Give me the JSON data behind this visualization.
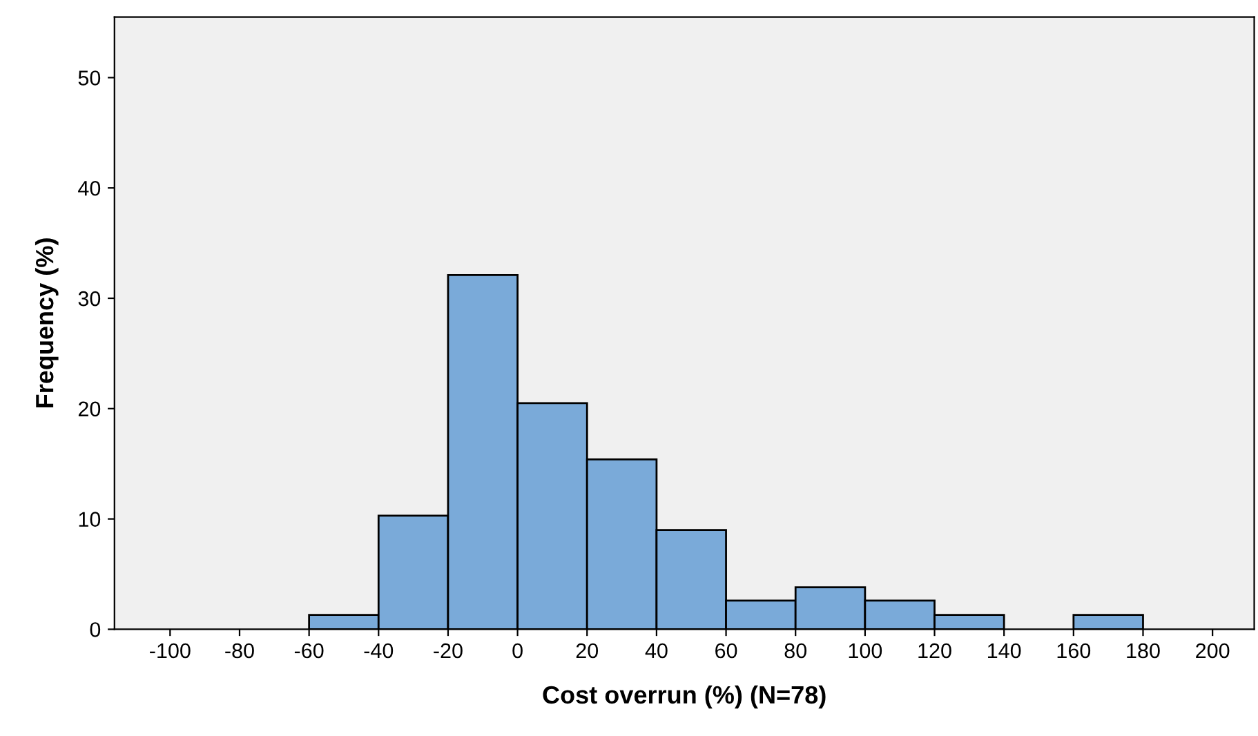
{
  "chart_data": {
    "type": "histogram",
    "xlabel": "Cost overrun (%) (N=78)",
    "ylabel": "Frequency (%)",
    "bins": [
      -60,
      -40,
      -20,
      0,
      20,
      40,
      60,
      80,
      100,
      120,
      140,
      160,
      180
    ],
    "values": [
      1.3,
      10.3,
      32.1,
      20.5,
      15.4,
      9.0,
      2.6,
      3.8,
      2.6,
      1.3,
      0,
      1.3
    ],
    "color": "#7aaad9",
    "xlim": [
      -116,
      212
    ],
    "xticks": [
      -100,
      -80,
      -60,
      -40,
      -20,
      0,
      20,
      40,
      60,
      80,
      100,
      120,
      140,
      160,
      180,
      200
    ],
    "ylim": [
      0,
      55.5
    ],
    "yticks": [
      0,
      10,
      20,
      30,
      40,
      50
    ],
    "grid": false
  }
}
